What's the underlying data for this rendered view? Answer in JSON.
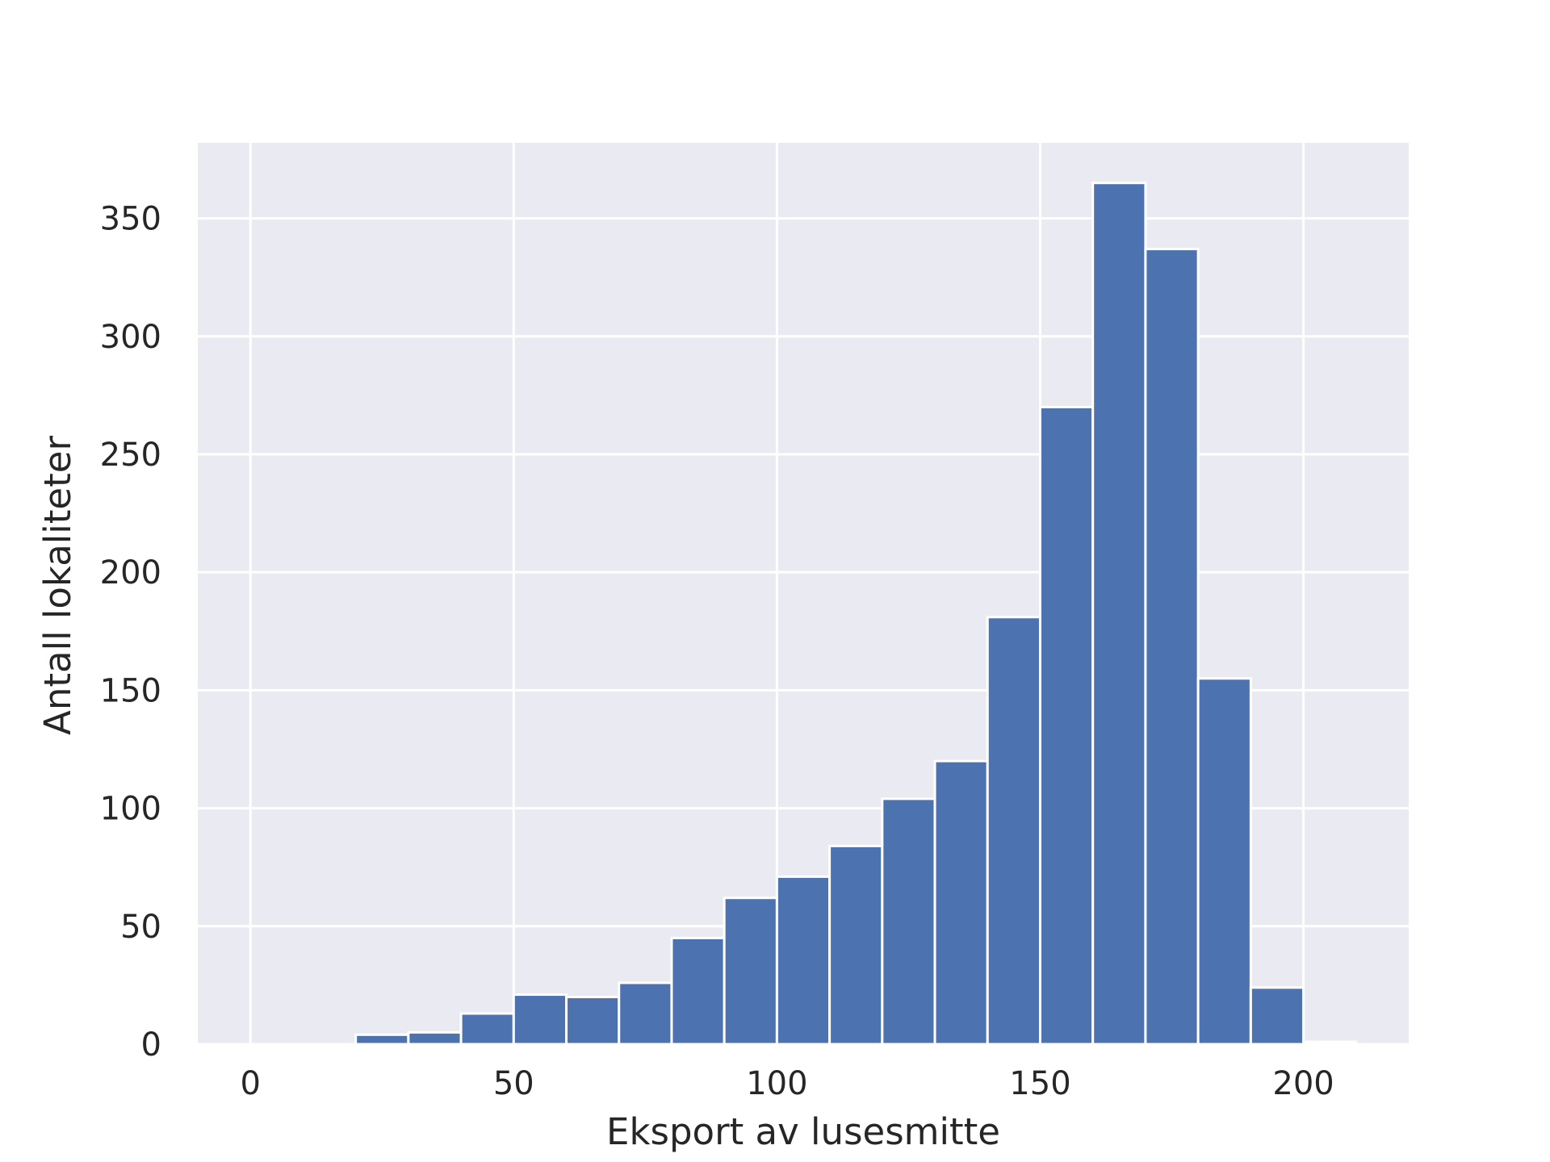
{
  "chart_data": {
    "type": "bar",
    "subtype": "histogram",
    "title": "",
    "xlabel": "Eksport av lusesmitte",
    "ylabel": "Antall lokaliteter",
    "bins": [
      {
        "start": 0,
        "end": 10,
        "count": 0
      },
      {
        "start": 10,
        "end": 20,
        "count": 0
      },
      {
        "start": 20,
        "end": 30,
        "count": 4
      },
      {
        "start": 30,
        "end": 40,
        "count": 5
      },
      {
        "start": 40,
        "end": 50,
        "count": 13
      },
      {
        "start": 50,
        "end": 60,
        "count": 21
      },
      {
        "start": 60,
        "end": 70,
        "count": 20
      },
      {
        "start": 70,
        "end": 80,
        "count": 26
      },
      {
        "start": 80,
        "end": 90,
        "count": 45
      },
      {
        "start": 90,
        "end": 100,
        "count": 62
      },
      {
        "start": 100,
        "end": 110,
        "count": 71
      },
      {
        "start": 110,
        "end": 120,
        "count": 84
      },
      {
        "start": 120,
        "end": 130,
        "count": 104
      },
      {
        "start": 130,
        "end": 140,
        "count": 120
      },
      {
        "start": 140,
        "end": 150,
        "count": 181
      },
      {
        "start": 150,
        "end": 160,
        "count": 270
      },
      {
        "start": 160,
        "end": 170,
        "count": 365
      },
      {
        "start": 170,
        "end": 180,
        "count": 337
      },
      {
        "start": 180,
        "end": 190,
        "count": 155
      },
      {
        "start": 190,
        "end": 200,
        "count": 24
      },
      {
        "start": 200,
        "end": 210,
        "count": 1
      }
    ],
    "xlim": [
      -10,
      220
    ],
    "ylim": [
      0,
      382
    ],
    "xticks": [
      0,
      50,
      100,
      150,
      200
    ],
    "yticks": [
      0,
      50,
      100,
      150,
      200,
      250,
      300,
      350
    ],
    "grid": true,
    "colors": {
      "bar": "#4c72b0",
      "background": "#eaeaf2",
      "grid": "#ffffff",
      "text": "#262626"
    }
  }
}
